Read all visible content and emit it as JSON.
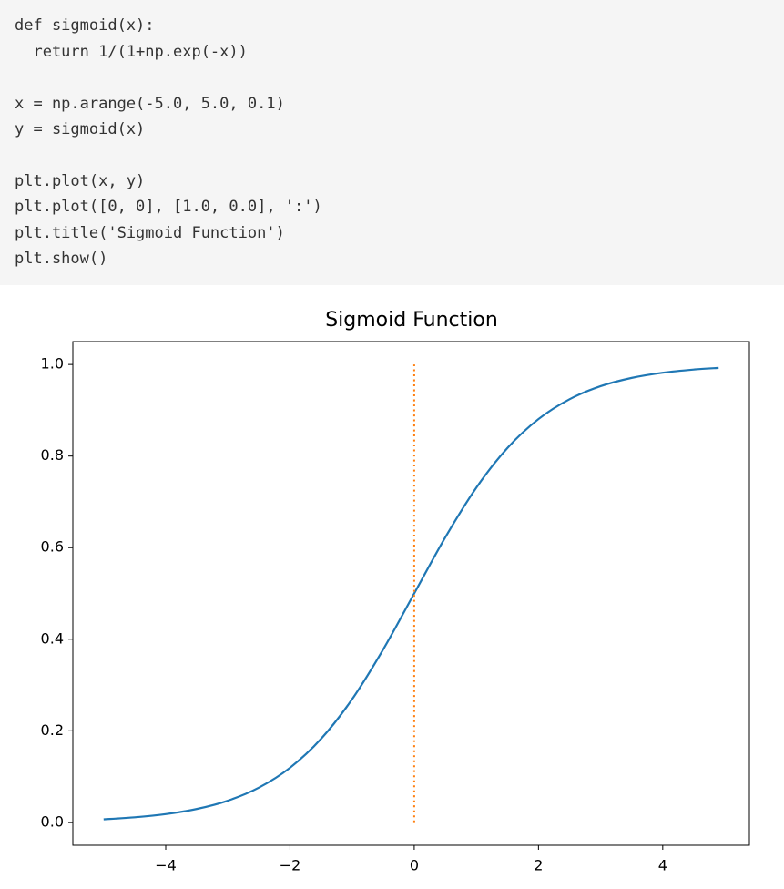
{
  "code": {
    "lines": [
      "def sigmoid(x):",
      "  return 1/(1+np.exp(-x))",
      "x = np.arange(-5.0, 5.0, 0.1)",
      "y = sigmoid(x)",
      "plt.plot(x, y)",
      "plt.plot([0, 0], [1.0, 0.0], ':')",
      "plt.title('Sigmoid Function')",
      "plt.show()"
    ]
  },
  "chart_data": {
    "type": "line",
    "title": "Sigmoid Function",
    "series": [
      {
        "color": "#1f77b4",
        "style": "solid",
        "x": [
          -5.0,
          -4.5,
          -4.0,
          -3.5,
          -3.0,
          -2.5,
          -2.0,
          -1.5,
          -1.0,
          -0.5,
          0.0,
          0.5,
          1.0,
          1.5,
          2.0,
          2.5,
          3.0,
          3.5,
          4.0,
          4.5,
          4.9
        ],
        "values": [
          0.0067,
          0.011,
          0.018,
          0.0293,
          0.0474,
          0.0759,
          0.1192,
          0.1824,
          0.2689,
          0.3775,
          0.5,
          0.6225,
          0.7311,
          0.8176,
          0.8808,
          0.9241,
          0.9526,
          0.9707,
          0.982,
          0.989,
          0.9926
        ]
      },
      {
        "color": "#ff7f0e",
        "style": "dotted",
        "x": [
          0,
          0
        ],
        "values": [
          1.0,
          0.0
        ]
      }
    ],
    "xlim": [
      -5.495,
      5.395
    ],
    "xticks": [
      {
        "value": -4,
        "label": "−4"
      },
      {
        "value": -2,
        "label": "−2"
      },
      0,
      2,
      4
    ],
    "ylim": [
      -0.05,
      1.05
    ],
    "yticks": [
      {
        "value": 0,
        "label": "0.0"
      },
      0.2,
      0.4,
      0.6,
      0.8,
      {
        "value": 1,
        "label": "1.0"
      }
    ]
  }
}
